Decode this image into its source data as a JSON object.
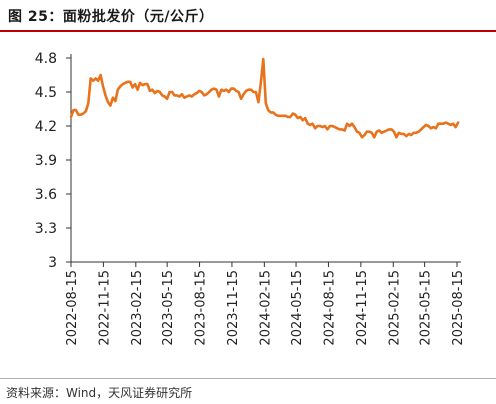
{
  "header": {
    "title": "图 25：面粉批发价（元/公斤）"
  },
  "footer": {
    "source": "资料来源：Wind，天风证券研究所"
  },
  "colors": {
    "accent_rule": "#c00000",
    "series": "#e8731c",
    "axis": "#333333"
  },
  "chart_data": {
    "type": "line",
    "title": "图 25：面粉批发价（元/公斤）",
    "xlabel": "",
    "ylabel": "",
    "ylim": [
      3.0,
      4.8
    ],
    "yticks": [
      3,
      3.3,
      3.6,
      3.9,
      4.2,
      4.5,
      4.8
    ],
    "ytick_labels": [
      "3",
      "3.3",
      "3.6",
      "3.9",
      "4.2",
      "4.5",
      "4.8"
    ],
    "xticks": [
      "2022-08-15",
      "2022-11-15",
      "2023-02-15",
      "2023-05-15",
      "2023-08-15",
      "2023-11-15",
      "2024-02-15",
      "2024-05-15",
      "2024-08-15",
      "2024-11-15",
      "2025-02-15",
      "2025-05-15",
      "2025-08-15"
    ],
    "grid": false,
    "legend": "none",
    "series": [
      {
        "name": "",
        "points": [
          [
            "2022-08-15",
            4.28
          ],
          [
            "2022-08-22",
            4.34
          ],
          [
            "2022-08-29",
            4.34
          ],
          [
            "2022-09-05",
            4.3
          ],
          [
            "2022-09-12",
            4.3
          ],
          [
            "2022-09-19",
            4.31
          ],
          [
            "2022-09-26",
            4.33
          ],
          [
            "2022-10-03",
            4.4
          ],
          [
            "2022-10-10",
            4.62
          ],
          [
            "2022-10-17",
            4.6
          ],
          [
            "2022-10-24",
            4.62
          ],
          [
            "2022-10-31",
            4.6
          ],
          [
            "2022-11-07",
            4.65
          ],
          [
            "2022-11-14",
            4.55
          ],
          [
            "2022-11-21",
            4.47
          ],
          [
            "2022-11-28",
            4.41
          ],
          [
            "2022-12-05",
            4.38
          ],
          [
            "2022-12-12",
            4.45
          ],
          [
            "2022-12-19",
            4.42
          ],
          [
            "2022-12-26",
            4.52
          ],
          [
            "2023-01-02",
            4.55
          ],
          [
            "2023-01-09",
            4.57
          ],
          [
            "2023-01-16",
            4.58
          ],
          [
            "2023-01-23",
            4.59
          ],
          [
            "2023-01-30",
            4.59
          ],
          [
            "2023-02-06",
            4.54
          ],
          [
            "2023-02-13",
            4.57
          ],
          [
            "2023-02-20",
            4.52
          ],
          [
            "2023-02-27",
            4.58
          ],
          [
            "2023-03-06",
            4.56
          ],
          [
            "2023-03-13",
            4.57
          ],
          [
            "2023-03-20",
            4.57
          ],
          [
            "2023-03-27",
            4.51
          ],
          [
            "2023-04-03",
            4.52
          ],
          [
            "2023-04-10",
            4.49
          ],
          [
            "2023-04-17",
            4.51
          ],
          [
            "2023-04-24",
            4.5
          ],
          [
            "2023-05-01",
            4.47
          ],
          [
            "2023-05-08",
            4.46
          ],
          [
            "2023-05-15",
            4.44
          ],
          [
            "2023-05-22",
            4.5
          ],
          [
            "2023-05-29",
            4.5
          ],
          [
            "2023-06-05",
            4.47
          ],
          [
            "2023-06-12",
            4.47
          ],
          [
            "2023-06-19",
            4.46
          ],
          [
            "2023-06-26",
            4.48
          ],
          [
            "2023-07-03",
            4.45
          ],
          [
            "2023-07-10",
            4.46
          ],
          [
            "2023-07-17",
            4.47
          ],
          [
            "2023-07-24",
            4.46
          ],
          [
            "2023-07-31",
            4.48
          ],
          [
            "2023-08-07",
            4.49
          ],
          [
            "2023-08-14",
            4.51
          ],
          [
            "2023-08-21",
            4.5
          ],
          [
            "2023-08-28",
            4.47
          ],
          [
            "2023-09-04",
            4.48
          ],
          [
            "2023-09-11",
            4.5
          ],
          [
            "2023-09-18",
            4.52
          ],
          [
            "2023-09-25",
            4.53
          ],
          [
            "2023-10-02",
            4.52
          ],
          [
            "2023-10-09",
            4.46
          ],
          [
            "2023-10-16",
            4.52
          ],
          [
            "2023-10-23",
            4.51
          ],
          [
            "2023-10-30",
            4.52
          ],
          [
            "2023-11-06",
            4.5
          ],
          [
            "2023-11-13",
            4.53
          ],
          [
            "2023-11-20",
            4.53
          ],
          [
            "2023-11-27",
            4.51
          ],
          [
            "2023-12-04",
            4.5
          ],
          [
            "2023-12-11",
            4.44
          ],
          [
            "2023-12-18",
            4.48
          ],
          [
            "2023-12-25",
            4.51
          ],
          [
            "2024-01-01",
            4.52
          ],
          [
            "2024-01-08",
            4.52
          ],
          [
            "2024-01-15",
            4.5
          ],
          [
            "2024-01-22",
            4.5
          ],
          [
            "2024-01-29",
            4.41
          ],
          [
            "2024-02-05",
            4.58
          ],
          [
            "2024-02-12",
            4.79
          ],
          [
            "2024-02-19",
            4.4
          ],
          [
            "2024-02-26",
            4.34
          ],
          [
            "2024-03-04",
            4.32
          ],
          [
            "2024-03-11",
            4.32
          ],
          [
            "2024-03-18",
            4.3
          ],
          [
            "2024-03-25",
            4.29
          ],
          [
            "2024-04-01",
            4.29
          ],
          [
            "2024-04-08",
            4.29
          ],
          [
            "2024-04-15",
            4.29
          ],
          [
            "2024-04-22",
            4.28
          ],
          [
            "2024-04-29",
            4.28
          ],
          [
            "2024-05-06",
            4.31
          ],
          [
            "2024-05-13",
            4.3
          ],
          [
            "2024-05-20",
            4.27
          ],
          [
            "2024-05-27",
            4.28
          ],
          [
            "2024-06-03",
            4.25
          ],
          [
            "2024-06-10",
            4.27
          ],
          [
            "2024-06-17",
            4.22
          ],
          [
            "2024-06-24",
            4.21
          ],
          [
            "2024-07-01",
            4.22
          ],
          [
            "2024-07-08",
            4.18
          ],
          [
            "2024-07-15",
            4.2
          ],
          [
            "2024-07-22",
            4.2
          ],
          [
            "2024-07-29",
            4.19
          ],
          [
            "2024-08-05",
            4.2
          ],
          [
            "2024-08-12",
            4.17
          ],
          [
            "2024-08-19",
            4.2
          ],
          [
            "2024-08-26",
            4.2
          ],
          [
            "2024-09-02",
            4.19
          ],
          [
            "2024-09-09",
            4.18
          ],
          [
            "2024-09-16",
            4.17
          ],
          [
            "2024-09-23",
            4.17
          ],
          [
            "2024-09-30",
            4.16
          ],
          [
            "2024-10-07",
            4.22
          ],
          [
            "2024-10-14",
            4.2
          ],
          [
            "2024-10-21",
            4.22
          ],
          [
            "2024-10-28",
            4.19
          ],
          [
            "2024-11-04",
            4.15
          ],
          [
            "2024-11-11",
            4.14
          ],
          [
            "2024-11-18",
            4.1
          ],
          [
            "2024-11-25",
            4.12
          ],
          [
            "2024-12-02",
            4.15
          ],
          [
            "2024-12-09",
            4.15
          ],
          [
            "2024-12-16",
            4.14
          ],
          [
            "2024-12-23",
            4.1
          ],
          [
            "2024-12-30",
            4.15
          ],
          [
            "2025-01-06",
            4.16
          ],
          [
            "2025-01-13",
            4.14
          ],
          [
            "2025-01-20",
            4.15
          ],
          [
            "2025-01-27",
            4.16
          ],
          [
            "2025-02-03",
            4.17
          ],
          [
            "2025-02-10",
            4.17
          ],
          [
            "2025-02-17",
            4.15
          ],
          [
            "2025-02-24",
            4.1
          ],
          [
            "2025-03-03",
            4.14
          ],
          [
            "2025-03-10",
            4.13
          ],
          [
            "2025-03-17",
            4.13
          ],
          [
            "2025-03-24",
            4.11
          ],
          [
            "2025-03-31",
            4.13
          ],
          [
            "2025-04-07",
            4.12
          ],
          [
            "2025-04-14",
            4.14
          ],
          [
            "2025-04-21",
            4.14
          ],
          [
            "2025-04-28",
            4.15
          ],
          [
            "2025-05-05",
            4.17
          ],
          [
            "2025-05-12",
            4.19
          ],
          [
            "2025-05-19",
            4.21
          ],
          [
            "2025-05-26",
            4.2
          ],
          [
            "2025-06-02",
            4.18
          ],
          [
            "2025-06-09",
            4.19
          ],
          [
            "2025-06-16",
            4.18
          ],
          [
            "2025-06-23",
            4.22
          ],
          [
            "2025-06-30",
            4.22
          ],
          [
            "2025-07-07",
            4.22
          ],
          [
            "2025-07-14",
            4.23
          ],
          [
            "2025-07-21",
            4.22
          ],
          [
            "2025-07-28",
            4.21
          ],
          [
            "2025-08-04",
            4.22
          ],
          [
            "2025-08-11",
            4.19
          ],
          [
            "2025-08-18",
            4.23
          ]
        ]
      }
    ]
  }
}
